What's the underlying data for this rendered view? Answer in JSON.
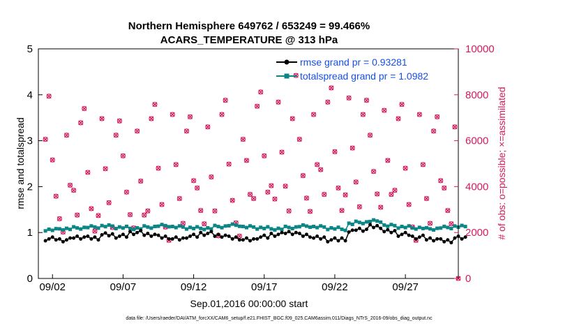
{
  "colors": {
    "rmse": "#000000",
    "totalspread": "#0b8585",
    "obs": "#d6195f",
    "legend_text": "#1450e6"
  },
  "chart_data": {
    "type": "line",
    "title": "Northern Hemisphere 649762 / 653249 = 99.466%",
    "subtitle": "ACARS_TEMPERATURE @ 313 hPa",
    "xlabel": "Sep.01,2016 00:00:00 start",
    "ylabel": "rmse and totalspread",
    "ylabel_right": "# of obs: o=possible; ×=assimilated",
    "footnote": "data file: /Users/raeder/DAI/ATM_forcXX/CAM6_setup/f.e21.FHIST_BGC.f09_025.CAM6assim.011/Diags_NTrS_2016-09/obs_diag_output.nc",
    "xlim": [
      0.5,
      30.25
    ],
    "ylim": [
      0,
      5
    ],
    "ylim_right": [
      0,
      10000
    ],
    "x_ticks": [
      1.5,
      6.5,
      11.5,
      16.5,
      21.5,
      26.5
    ],
    "x_tick_labels": [
      "09/02",
      "09/07",
      "09/12",
      "09/17",
      "09/22",
      "09/27"
    ],
    "y_ticks": [
      0,
      1,
      2,
      3,
      4,
      5
    ],
    "y_ticks_right": [
      0,
      2000,
      4000,
      6000,
      8000,
      10000
    ],
    "grid": false,
    "legend_position": "top-right",
    "series": [
      {
        "name": "rmse grand pr = 0.93281",
        "axis": "left",
        "marker": "o",
        "values": []
      },
      {
        "name": "totalspread grand pr = 1.0982",
        "axis": "left",
        "marker": "square",
        "values": []
      },
      {
        "axis": "right",
        "marker": "o-and-x",
        "values": []
      }
    ]
  }
}
